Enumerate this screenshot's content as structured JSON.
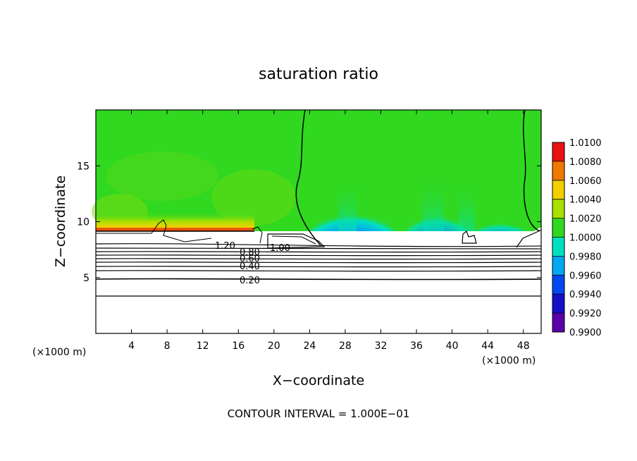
{
  "chart_data": {
    "type": "heatmap",
    "title": "saturation ratio",
    "xlabel": "X−coordinate",
    "ylabel": "Z−coordinate",
    "x_unit_left": "(×1000 m)",
    "x_unit_right": "(×1000 m)",
    "xlim": [
      0,
      50
    ],
    "ylim": [
      0,
      20
    ],
    "x_ticks": [
      4,
      8,
      12,
      16,
      20,
      24,
      28,
      32,
      36,
      40,
      44,
      48
    ],
    "y_ticks": [
      5,
      10,
      15
    ],
    "colorbar": {
      "levels": [
        0.99,
        0.992,
        0.994,
        0.996,
        0.998,
        1.0,
        1.002,
        1.004,
        1.006,
        1.008,
        1.01
      ],
      "labels": [
        "0.9900",
        "0.9920",
        "0.9940",
        "0.9960",
        "0.9980",
        "1.0000",
        "1.0020",
        "1.0040",
        "1.0060",
        "1.0080",
        "1.0100"
      ],
      "colors": [
        "#5a00a8",
        "#1410c8",
        "#0048f0",
        "#00a8f0",
        "#00e0c0",
        "#30d820",
        "#a8e000",
        "#f0d000",
        "#f07800",
        "#e81010",
        "#f0a0a0"
      ]
    },
    "contour_labels": [
      "1.20",
      "1.00",
      "0.80",
      "0.60",
      "0.40",
      "0.20"
    ],
    "contour_levels": [
      0.2,
      0.4,
      0.6,
      0.8,
      1.0,
      1.2
    ],
    "footer": "CONTOUR INTERVAL = 1.000E−01"
  }
}
